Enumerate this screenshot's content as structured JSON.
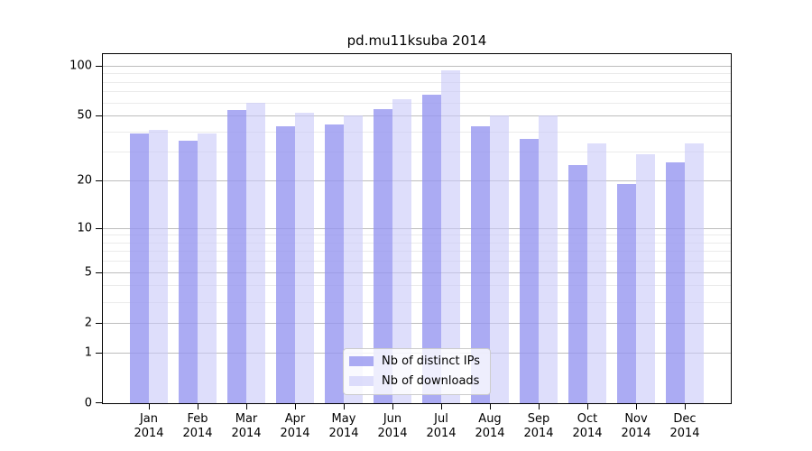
{
  "figure": {
    "title": "pd.mu11ksuba 2014"
  },
  "chart_data": {
    "type": "bar",
    "title": "pd.mu11ksuba 2014",
    "yscale": "log1p",
    "ylim": [
      0,
      117
    ],
    "yticks_major": [
      0,
      1,
      2,
      5,
      10,
      20,
      50,
      100
    ],
    "yticks_minor": [
      3,
      4,
      6,
      7,
      8,
      9,
      30,
      40,
      60,
      70,
      80,
      90
    ],
    "grid": "on",
    "legend_position": "lower center",
    "categories": [
      "Jan",
      "Feb",
      "Mar",
      "Apr",
      "May",
      "Jun",
      "Jul",
      "Aug",
      "Sep",
      "Oct",
      "Nov",
      "Dec"
    ],
    "x_year_label": "2014",
    "series": [
      {
        "name": "Nb of distinct IPs",
        "color": "rgba(150,150,240,0.8)",
        "color_hex": "#abaaf3",
        "values": [
          39,
          35,
          54,
          43,
          44,
          55,
          67,
          43,
          36,
          25,
          19,
          26
        ]
      },
      {
        "name": "Nb of downloads",
        "color": "rgba(200,200,248,0.6)",
        "color_hex": "#dedefb",
        "values": [
          41,
          39,
          60,
          52,
          50,
          63,
          94,
          50,
          50,
          34,
          29,
          34
        ]
      }
    ]
  },
  "colors": {
    "background": "#ffffff",
    "spine": "#000000",
    "grid_major": "#bdbdbd",
    "grid_minor": "#ebebeb",
    "text": "#000000"
  }
}
